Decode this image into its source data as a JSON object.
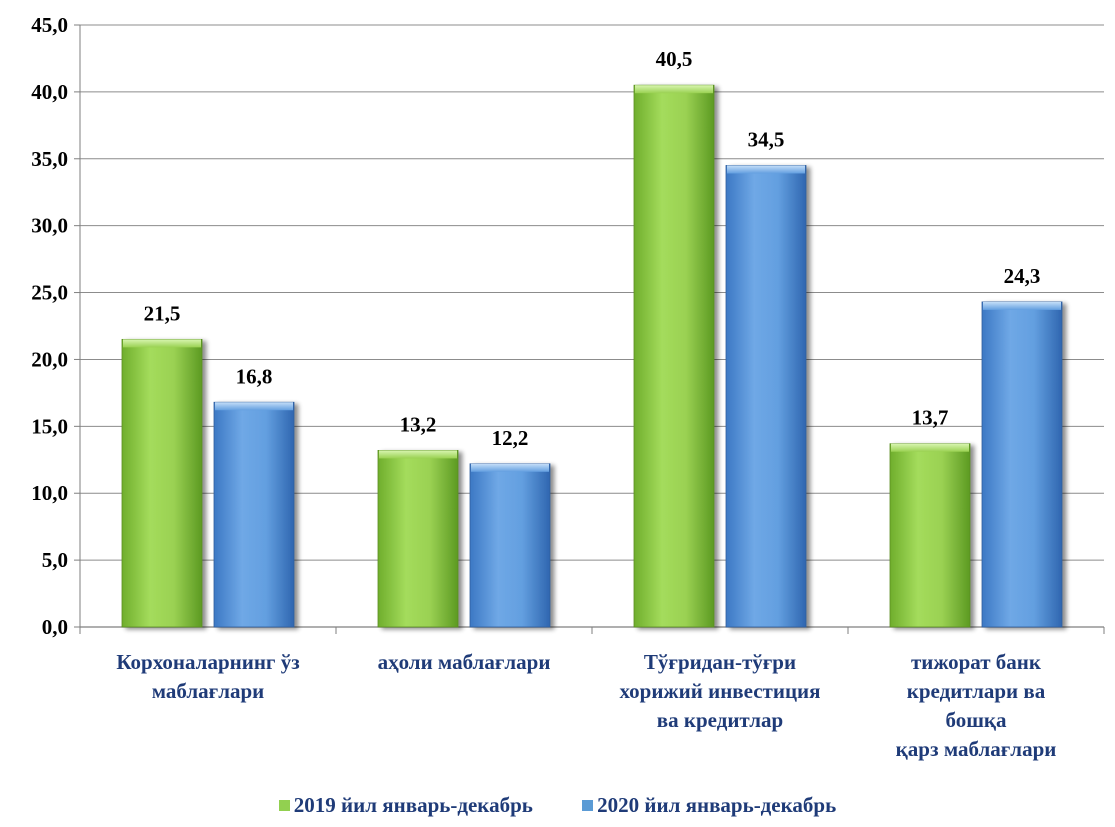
{
  "chart_data": {
    "type": "bar",
    "categories": [
      [
        "Корхоналарнинг ўз",
        "маблағлари"
      ],
      [
        "аҳоли маблағлари"
      ],
      [
        "Тўғридан-тўғри",
        "хорижий инвестиция",
        "ва кредитлар"
      ],
      [
        "тижорат банк",
        "кредитлари ва",
        "бошқа",
        "қарз маблағлари"
      ]
    ],
    "series": [
      {
        "name": "2019 йил январь-декабрь",
        "values": [
          21.5,
          13.2,
          40.5,
          13.7
        ],
        "labels": [
          "21,5",
          "13,2",
          "40,5",
          "13,7"
        ],
        "color": "#92d050"
      },
      {
        "name": "2020 йил январь-декабрь",
        "values": [
          16.8,
          12.2,
          34.5,
          24.3
        ],
        "labels": [
          "16,8",
          "12,2",
          "34,5",
          "24,3"
        ],
        "color": "#5b9bd5"
      }
    ],
    "yticks": [
      "0,0",
      "5,0",
      "10,0",
      "15,0",
      "20,0",
      "25,0",
      "30,0",
      "35,0",
      "40,0",
      "45,0"
    ],
    "ylim": [
      0,
      45
    ],
    "grid": true,
    "legend_position": "bottom",
    "title": "",
    "xlabel": "",
    "ylabel": ""
  }
}
